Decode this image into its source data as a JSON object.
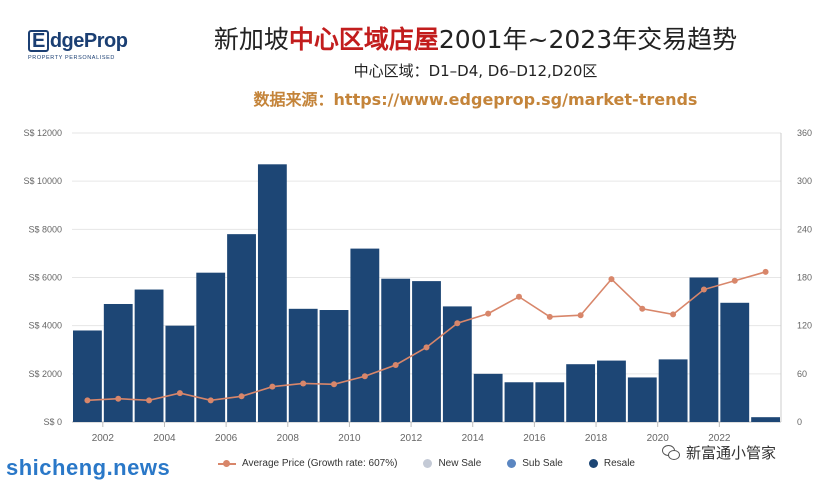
{
  "logo": {
    "main": "dgeProp",
    "letter": "E",
    "tagline": "PROPERTY PERSONALISED"
  },
  "title": {
    "part1": "新加坡",
    "highlight": "中心区域店屋",
    "part2": "2001年~2023年交易趋势"
  },
  "subtitle": "中心区域：D1–D4, D6–D12,D20区",
  "source": "数据来源：https://www.edgeprop.sg/market-trends",
  "colors": {
    "bar": "#1d4675",
    "price_line": "#d8866a",
    "new_sale": "#c4cad6",
    "sub_sale": "#5b86c1",
    "resale": "#1d4675"
  },
  "legend": [
    {
      "label": "Average Price (Growth rate: 607%)",
      "icon": "line-marker"
    },
    {
      "label": "New Sale",
      "icon": "dot",
      "color": "#c4cad6"
    },
    {
      "label": "Sub Sale",
      "icon": "dot",
      "color": "#5b86c1"
    },
    {
      "label": "Resale",
      "icon": "dot",
      "color": "#1d4675"
    }
  ],
  "watermark_left": "shicheng.news",
  "watermark_right": "新富通小管家",
  "chart_data": {
    "type": "bar",
    "x": [
      2001,
      2002,
      2003,
      2004,
      2005,
      2006,
      2007,
      2008,
      2009,
      2010,
      2011,
      2012,
      2013,
      2014,
      2015,
      2016,
      2017,
      2018,
      2019,
      2020,
      2021,
      2022,
      2023
    ],
    "xticks": [
      "2002",
      "2004",
      "2006",
      "2008",
      "2010",
      "2012",
      "2014",
      "2016",
      "2018",
      "2020",
      "2022"
    ],
    "series": [
      {
        "name": "Resale",
        "type": "bar",
        "axis": "left",
        "values": [
          3800,
          4900,
          5500,
          4000,
          6200,
          7800,
          10700,
          4700,
          4650,
          7200,
          5950,
          5850,
          4800,
          2000,
          1650,
          1650,
          2400,
          2550,
          1850,
          2600,
          6000,
          4950,
          200
        ]
      },
      {
        "name": "Average Price (Growth rate: 607%)",
        "type": "line",
        "axis": "right",
        "values": [
          27,
          29,
          27,
          36,
          27,
          32,
          44,
          48,
          47,
          57,
          71,
          93,
          123,
          135,
          156,
          131,
          133,
          178,
          141,
          134,
          165,
          176,
          187
        ]
      }
    ],
    "y_left": {
      "min": 0,
      "max": 12000,
      "ticks": [
        "S$ 0",
        "S$ 2000",
        "S$ 4000",
        "S$ 6000",
        "S$ 8000",
        "S$ 10000",
        "S$ 12000"
      ]
    },
    "y_right": {
      "min": 0,
      "max": 360,
      "ticks": [
        "0",
        "60",
        "120",
        "180",
        "240",
        "300",
        "360"
      ]
    },
    "grid": true,
    "legend_position": "bottom"
  }
}
